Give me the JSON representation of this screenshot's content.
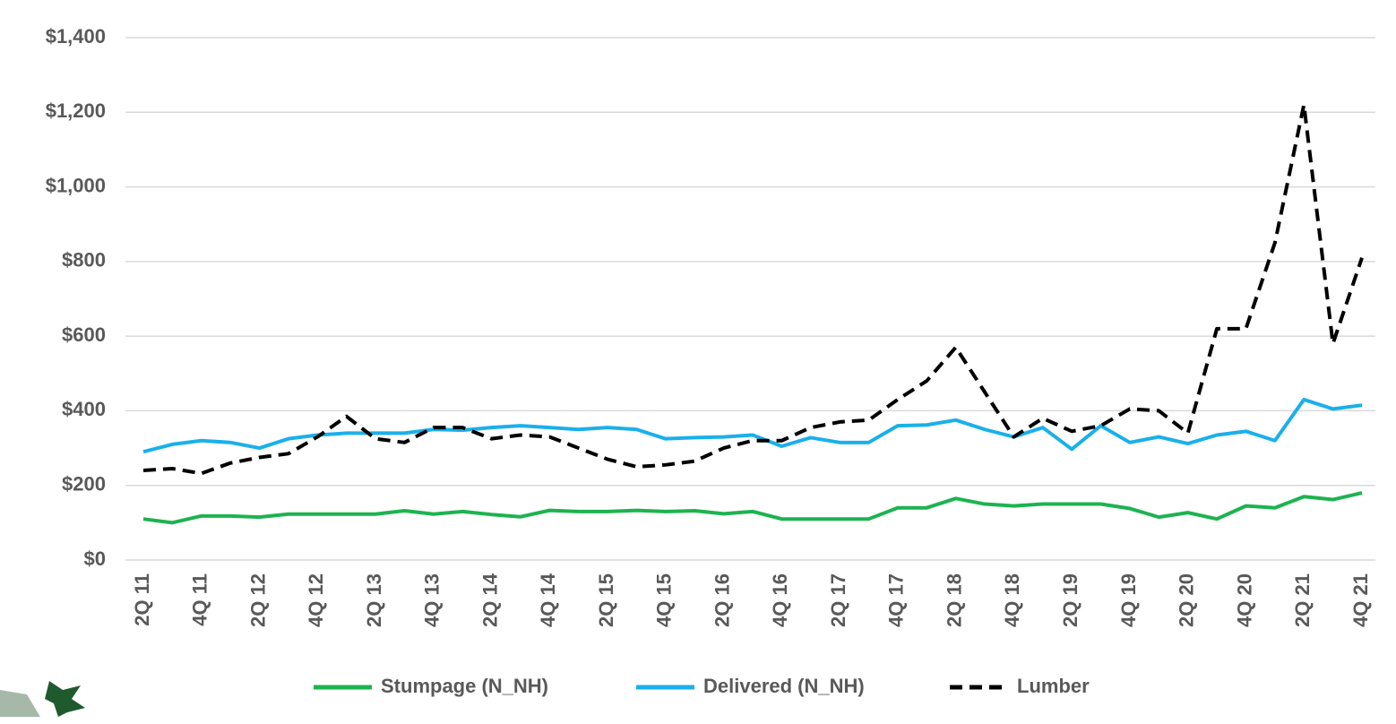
{
  "chart_data": {
    "type": "line",
    "categories": [
      "2Q 11",
      null,
      "4Q 11",
      null,
      "2Q 12",
      null,
      "4Q 12",
      null,
      "2Q 13",
      null,
      "4Q 13",
      null,
      "2Q 14",
      null,
      "4Q 14",
      null,
      "2Q 15",
      null,
      "4Q 15",
      null,
      "2Q 16",
      null,
      "4Q 16",
      null,
      "2Q 17",
      null,
      "4Q 17",
      null,
      "2Q 18",
      null,
      "4Q 18",
      null,
      "2Q 19",
      null,
      "4Q 19",
      null,
      "2Q 20",
      null,
      "4Q 20",
      null,
      "2Q 21",
      null,
      "4Q 21"
    ],
    "series": [
      {
        "name": "Stumpage (N_NH)",
        "color": "#1db350",
        "dash": false,
        "values": [
          110,
          100,
          118,
          118,
          115,
          123,
          123,
          123,
          123,
          132,
          123,
          130,
          122,
          116,
          133,
          130,
          130,
          133,
          130,
          132,
          124,
          130,
          110,
          110,
          110,
          110,
          140,
          140,
          165,
          150,
          145,
          150,
          150,
          150,
          138,
          115,
          127,
          110,
          145,
          140,
          170,
          162,
          180
        ]
      },
      {
        "name": "Delivered (N_NH)",
        "color": "#1ab0ea",
        "dash": false,
        "values": [
          290,
          310,
          320,
          315,
          300,
          325,
          335,
          340,
          340,
          340,
          350,
          348,
          355,
          360,
          355,
          350,
          355,
          350,
          325,
          328,
          330,
          335,
          305,
          328,
          315,
          315,
          360,
          362,
          375,
          350,
          330,
          355,
          297,
          360,
          315,
          330,
          312,
          335,
          345,
          320,
          430,
          405,
          415
        ]
      },
      {
        "name": "Lumber",
        "color": "#000000",
        "dash": true,
        "values": [
          240,
          245,
          232,
          260,
          275,
          285,
          330,
          385,
          325,
          315,
          355,
          355,
          325,
          335,
          330,
          300,
          270,
          250,
          255,
          265,
          300,
          320,
          320,
          355,
          370,
          375,
          430,
          480,
          570,
          450,
          330,
          380,
          345,
          360,
          405,
          400,
          340,
          620,
          620,
          850,
          1220,
          580,
          810
        ]
      }
    ],
    "ylim": [
      0,
      1400
    ],
    "yticks": [
      {
        "value": 0,
        "label": "$0"
      },
      {
        "value": 200,
        "label": "$200"
      },
      {
        "value": 400,
        "label": "$400"
      },
      {
        "value": 600,
        "label": "$600"
      },
      {
        "value": 800,
        "label": "$800"
      },
      {
        "value": 1000,
        "label": "$1,000"
      },
      {
        "value": 1200,
        "label": "$1,200"
      },
      {
        "value": 1400,
        "label": "$1,400"
      }
    ],
    "grid": true,
    "legend": "bottom"
  }
}
